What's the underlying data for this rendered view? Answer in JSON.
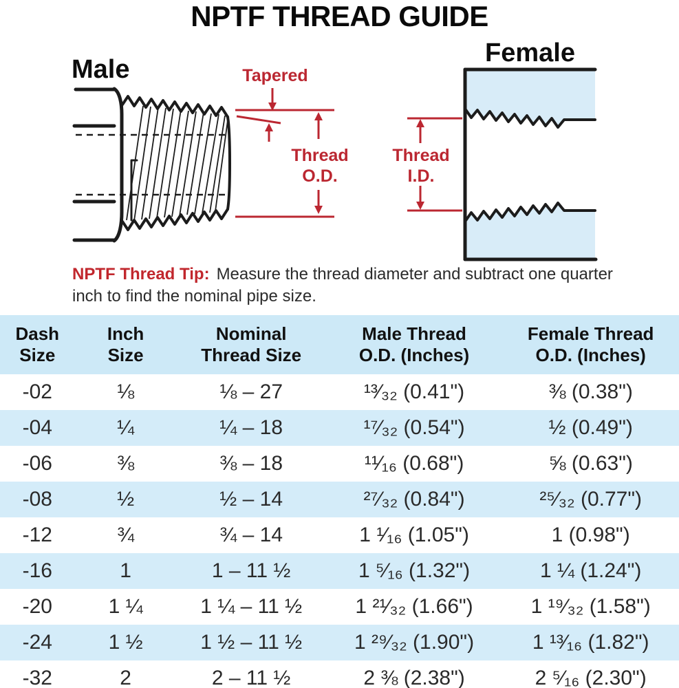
{
  "title": "NPTF THREAD GUIDE",
  "diagram": {
    "male_label": "Male",
    "female_label": "Female",
    "tapered_label": "Tapered",
    "thread_od_label": "Thread\nO.D.",
    "thread_id_label": "Thread\nI.D."
  },
  "tip": {
    "label": "NPTF Thread Tip:",
    "text": "Measure the thread diameter and subtract one quarter inch to find the nominal pipe size."
  },
  "table": {
    "headers": [
      "Dash\nSize",
      "Inch\nSize",
      "Nominal\nThread Size",
      "Male Thread\nO.D. (Inches)",
      "Female Thread\nO.D. (Inches)"
    ],
    "rows": [
      [
        "-02",
        "⅛",
        "⅛ – 27",
        "¹³⁄₃₂ (0.41\")",
        "⅜ (0.38\")"
      ],
      [
        "-04",
        "¼",
        "¼ – 18",
        "¹⁷⁄₃₂ (0.54\")",
        "½ (0.49\")"
      ],
      [
        "-06",
        "⅜",
        "⅜ – 18",
        "¹¹⁄₁₆ (0.68\")",
        "⅝ (0.63\")"
      ],
      [
        "-08",
        "½",
        "½ – 14",
        "²⁷⁄₃₂ (0.84\")",
        "²⁵⁄₃₂ (0.77\")"
      ],
      [
        "-12",
        "¾",
        "¾ – 14",
        "1 ¹⁄₁₆ (1.05\")",
        "1 (0.98\")"
      ],
      [
        "-16",
        "1",
        "1 – 11 ½",
        "1 ⁵⁄₁₆ (1.32\")",
        "1 ¼ (1.24\")"
      ],
      [
        "-20",
        "1 ¼",
        "1 ¼ – 11 ½",
        "1 ²¹⁄₃₂ (1.66\")",
        "1 ¹⁹⁄₃₂ (1.58\")"
      ],
      [
        "-24",
        "1 ½",
        "1 ½ – 11 ½",
        "1 ²⁹⁄₃₂ (1.90\")",
        "1 ¹³⁄₁₆ (1.82\")"
      ],
      [
        "-32",
        "2",
        "2 – 11 ½",
        "2 ⅜ (2.38\")",
        "2 ⁵⁄₁₆ (2.30\")"
      ]
    ]
  },
  "colors": {
    "annotation_red": "#bb2731",
    "tip_label_red": "#c1272d",
    "outline_black": "#1c1c1c",
    "female_fill": "#d8ecf8",
    "table_header_bg": "#cde9f7",
    "table_row_alt_bg": "#d4ecf9",
    "table_text": "#2a2a2a"
  }
}
